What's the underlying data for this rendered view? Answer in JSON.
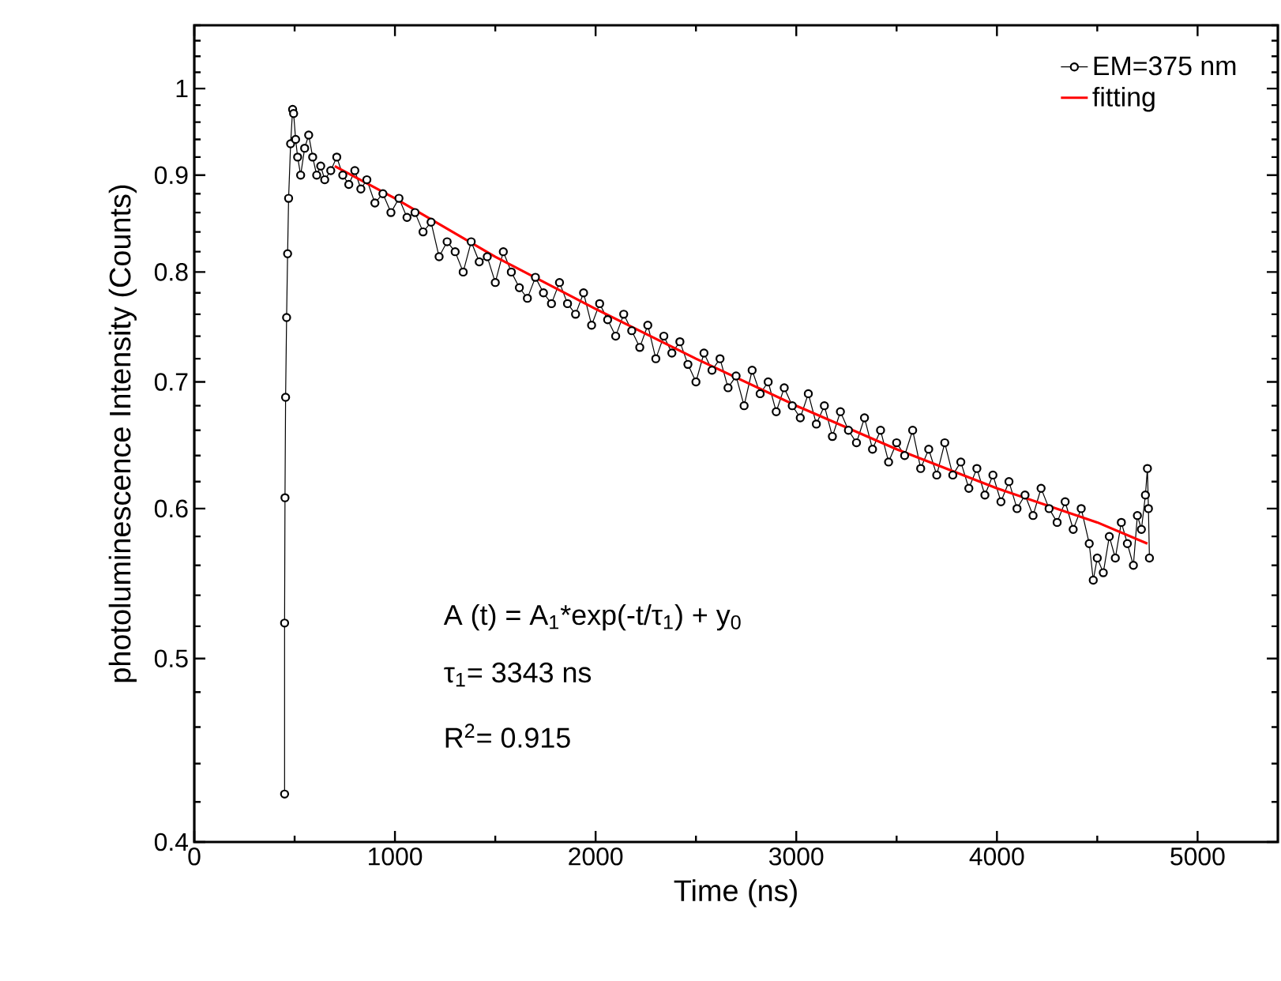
{
  "chart_data": {
    "type": "line",
    "xlabel": "Time (ns)",
    "ylabel": "photoluminescence Intensity (Counts)",
    "log": "y",
    "xlim": [
      0,
      5400
    ],
    "ylim": [
      0.4,
      1.08
    ],
    "xticks": [
      0,
      1000,
      2000,
      3000,
      4000,
      5000
    ],
    "yticks": [
      0.4,
      0.5,
      0.6,
      0.7,
      0.8,
      0.9,
      1
    ],
    "legend": "top right",
    "annotations": [
      "A (t) = A$_{1}$*exp(-t/τ$_{1}$) + y$_{0}$",
      "τ$_{1}$= 3343 ns",
      "R$^{2}$= 0.915"
    ],
    "series": [
      {
        "name": "EM=375 nm",
        "color": "#000000",
        "marker": "circle",
        "line_style": "solid",
        "x": [
          450,
          450,
          452,
          455,
          460,
          465,
          470,
          480,
          490,
          495,
          505,
          515,
          530,
          550,
          570,
          590,
          610,
          630,
          650,
          680,
          710,
          740,
          770,
          800,
          830,
          860,
          900,
          940,
          980,
          1020,
          1060,
          1100,
          1140,
          1180,
          1220,
          1260,
          1300,
          1340,
          1380,
          1420,
          1460,
          1500,
          1540,
          1580,
          1620,
          1660,
          1700,
          1740,
          1780,
          1820,
          1860,
          1900,
          1940,
          1980,
          2020,
          2060,
          2100,
          2140,
          2180,
          2220,
          2260,
          2300,
          2340,
          2380,
          2420,
          2460,
          2500,
          2540,
          2580,
          2620,
          2660,
          2700,
          2740,
          2780,
          2820,
          2860,
          2900,
          2940,
          2980,
          3020,
          3060,
          3100,
          3140,
          3180,
          3220,
          3260,
          3300,
          3340,
          3380,
          3420,
          3460,
          3500,
          3540,
          3580,
          3620,
          3660,
          3700,
          3740,
          3780,
          3820,
          3860,
          3900,
          3940,
          3980,
          4020,
          4060,
          4100,
          4140,
          4180,
          4220,
          4260,
          4300,
          4340,
          4380,
          4420,
          4460,
          4480,
          4500,
          4530,
          4560,
          4590,
          4620,
          4650,
          4680,
          4700,
          4720,
          4740,
          4750,
          4755,
          4760
        ],
        "values": [
          0.424,
          0.522,
          0.608,
          0.687,
          0.757,
          0.818,
          0.875,
          0.935,
          0.975,
          0.97,
          0.94,
          0.92,
          0.9,
          0.93,
          0.945,
          0.92,
          0.9,
          0.91,
          0.895,
          0.905,
          0.92,
          0.9,
          0.89,
          0.905,
          0.885,
          0.895,
          0.87,
          0.88,
          0.86,
          0.875,
          0.855,
          0.86,
          0.84,
          0.85,
          0.815,
          0.83,
          0.82,
          0.8,
          0.83,
          0.81,
          0.815,
          0.79,
          0.82,
          0.8,
          0.785,
          0.775,
          0.795,
          0.78,
          0.77,
          0.79,
          0.77,
          0.76,
          0.78,
          0.75,
          0.77,
          0.755,
          0.74,
          0.76,
          0.745,
          0.73,
          0.75,
          0.72,
          0.74,
          0.725,
          0.735,
          0.715,
          0.7,
          0.725,
          0.71,
          0.72,
          0.695,
          0.705,
          0.68,
          0.71,
          0.69,
          0.7,
          0.675,
          0.695,
          0.68,
          0.67,
          0.69,
          0.665,
          0.68,
          0.655,
          0.675,
          0.66,
          0.65,
          0.67,
          0.645,
          0.66,
          0.635,
          0.65,
          0.64,
          0.66,
          0.63,
          0.645,
          0.625,
          0.65,
          0.625,
          0.635,
          0.615,
          0.63,
          0.61,
          0.625,
          0.605,
          0.62,
          0.6,
          0.61,
          0.595,
          0.615,
          0.6,
          0.59,
          0.605,
          0.585,
          0.6,
          0.575,
          0.55,
          0.565,
          0.555,
          0.58,
          0.565,
          0.59,
          0.575,
          0.56,
          0.595,
          0.585,
          0.61,
          0.63,
          0.6,
          0.565
        ]
      },
      {
        "name": "fitting",
        "color": "#ff0000",
        "marker": "none",
        "line_style": "solid",
        "x": [
          700,
          1000,
          1500,
          2000,
          2500,
          3000,
          3500,
          4000,
          4500,
          4750
        ],
        "values": [
          0.91,
          0.875,
          0.815,
          0.765,
          0.72,
          0.68,
          0.645,
          0.615,
          0.59,
          0.575
        ]
      }
    ]
  }
}
